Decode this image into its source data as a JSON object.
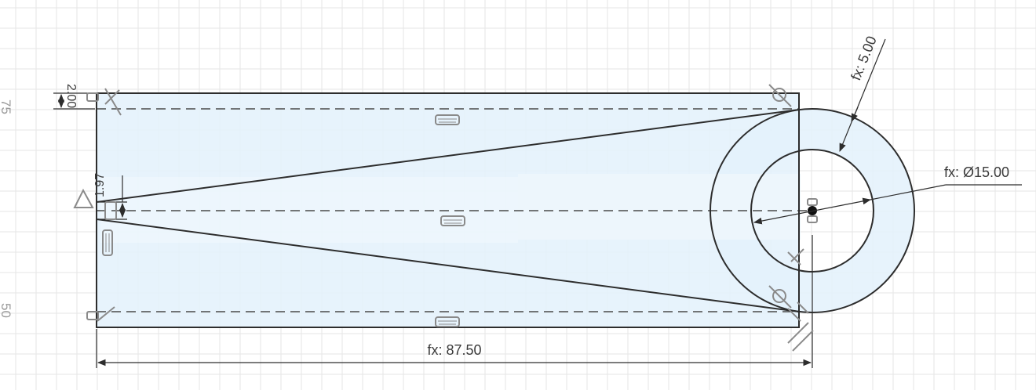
{
  "ruler": {
    "label_top": "75",
    "label_bottom": "50"
  },
  "dimensions": {
    "length": "fx: 87.50",
    "offset_top": "2.00",
    "offset_left": "1.97",
    "wall_thickness": "fx: 5.00",
    "diameter": "fx: Ø15.00"
  },
  "colors": {
    "grid": "#e6e6e6",
    "grid_major": "#d8d8d8",
    "profile_fill": "#dceefa",
    "line": "#2d2d2d",
    "construction": "#4a4a4a",
    "constraint_icon": "#8a8a8a"
  },
  "icons": {
    "horizontal_constraint": "horizontal-constraint-icon",
    "coincident_constraint": "coincident-constraint-icon",
    "tangent_constraint": "tangent-constraint-icon",
    "perpendicular_constraint": "perpendicular-constraint-icon",
    "symmetry_constraint": "symmetry-constraint-icon",
    "center_point": "center-point-icon"
  }
}
